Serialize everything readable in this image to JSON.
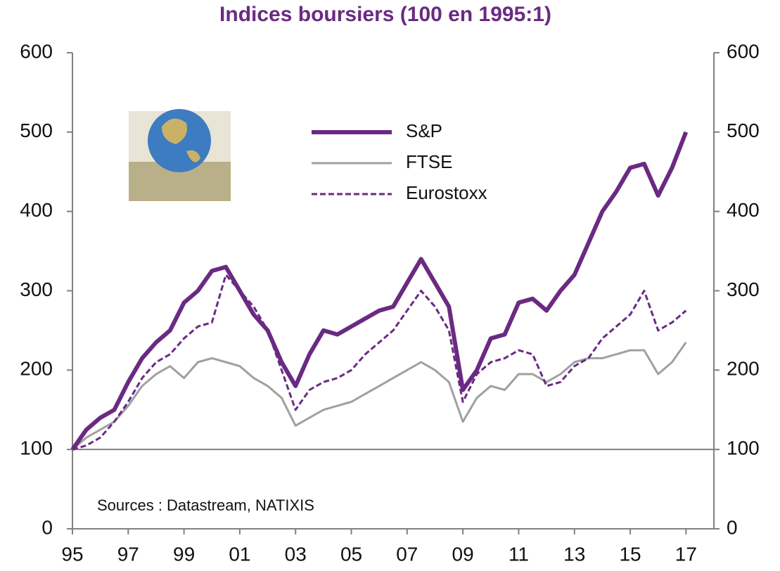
{
  "chart_data": {
    "type": "line",
    "title": "Indices boursiers (100 en 1995:1)",
    "annotation": "Sources : Datastream, NATIXIS",
    "x": [
      1995.0,
      1995.5,
      1996.0,
      1996.5,
      1997.0,
      1997.5,
      1998.0,
      1998.5,
      1999.0,
      1999.5,
      2000.0,
      2000.5,
      2001.0,
      2001.5,
      2002.0,
      2002.5,
      2003.0,
      2003.5,
      2004.0,
      2004.5,
      2005.0,
      2005.5,
      2006.0,
      2006.5,
      2007.0,
      2007.5,
      2008.0,
      2008.5,
      2009.0,
      2009.5,
      2010.0,
      2010.5,
      2011.0,
      2011.5,
      2012.0,
      2012.5,
      2013.0,
      2013.5,
      2014.0,
      2014.5,
      2015.0,
      2015.5,
      2016.0,
      2016.5,
      2017.0
    ],
    "series": [
      {
        "name": "S&P",
        "color": "#6a2a82",
        "style": "thick",
        "values": [
          100,
          125,
          140,
          150,
          185,
          215,
          235,
          250,
          285,
          300,
          325,
          330,
          300,
          270,
          250,
          210,
          180,
          220,
          250,
          245,
          255,
          265,
          275,
          280,
          310,
          340,
          310,
          280,
          175,
          200,
          240,
          245,
          285,
          290,
          275,
          300,
          320,
          360,
          400,
          425,
          455,
          460,
          420,
          455,
          500
        ]
      },
      {
        "name": "FTSE",
        "color": "#a0a0a0",
        "style": "solid",
        "values": [
          100,
          115,
          125,
          135,
          155,
          180,
          195,
          205,
          190,
          210,
          215,
          210,
          205,
          190,
          180,
          165,
          130,
          140,
          150,
          155,
          160,
          170,
          180,
          190,
          200,
          210,
          200,
          185,
          135,
          165,
          180,
          175,
          195,
          195,
          185,
          195,
          210,
          215,
          215,
          220,
          225,
          225,
          195,
          210,
          235
        ]
      },
      {
        "name": "Eurostoxx",
        "color": "#6a2a82",
        "style": "dashed",
        "values": [
          100,
          105,
          115,
          135,
          160,
          190,
          210,
          220,
          240,
          255,
          260,
          320,
          300,
          280,
          250,
          200,
          150,
          175,
          185,
          190,
          200,
          220,
          235,
          250,
          275,
          300,
          280,
          250,
          160,
          195,
          210,
          215,
          225,
          220,
          180,
          185,
          205,
          215,
          240,
          255,
          270,
          300,
          250,
          260,
          275
        ]
      }
    ],
    "xlim": [
      1995,
      2018
    ],
    "xticks": [
      {
        "value": 1995,
        "label": "95"
      },
      {
        "value": 1997,
        "label": "97"
      },
      {
        "value": 1999,
        "label": "99"
      },
      {
        "value": 2001,
        "label": "01"
      },
      {
        "value": 2003,
        "label": "03"
      },
      {
        "value": 2005,
        "label": "05"
      },
      {
        "value": 2007,
        "label": "07"
      },
      {
        "value": 2009,
        "label": "09"
      },
      {
        "value": 2011,
        "label": "11"
      },
      {
        "value": 2013,
        "label": "13"
      },
      {
        "value": 2015,
        "label": "15"
      },
      {
        "value": 2017,
        "label": "17"
      }
    ],
    "ylim": [
      0,
      600
    ],
    "yticks": [
      0,
      100,
      200,
      300,
      400,
      500,
      600
    ],
    "y2lim": [
      0,
      600
    ],
    "y2ticks": [
      0,
      100,
      200,
      300,
      400,
      500,
      600
    ],
    "hline": 100,
    "axis_color": "#808080"
  }
}
